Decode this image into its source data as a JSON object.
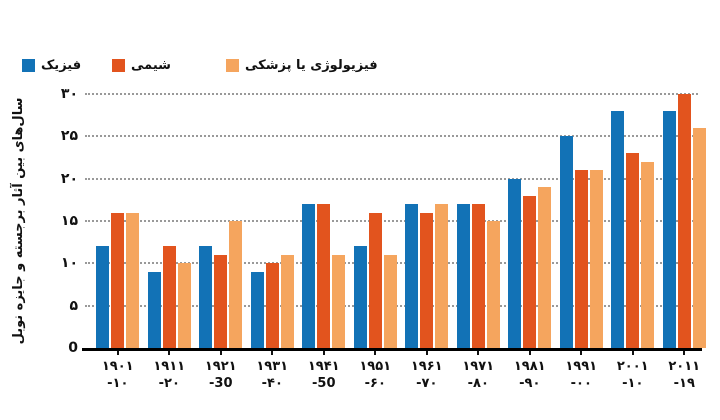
{
  "legend": {
    "position": "top-left"
  },
  "y_axis": {
    "title": "سال‌های بین آثار برجسته و جایزه نوبل",
    "ticks": [
      {
        "label": "۳۰",
        "value": 30
      },
      {
        "label": "۲۵",
        "value": 25
      },
      {
        "label": "۲۰",
        "value": 20
      },
      {
        "label": "۱۵",
        "value": 15
      },
      {
        "label": "۱۰",
        "value": 10
      },
      {
        "label": "۵",
        "value": 5
      },
      {
        "label": "0",
        "value": 0
      }
    ]
  },
  "x_axis": {
    "labels": [
      {
        "line1": "۱۹۰۱",
        "line2": "-۱۰"
      },
      {
        "line1": "۱۹۱۱",
        "line2": "-۲۰"
      },
      {
        "line1": "۱۹۲۱",
        "line2": "-30"
      },
      {
        "line1": "۱۹۳۱",
        "line2": "-۴۰"
      },
      {
        "line1": "۱۹۴۱",
        "line2": "-50"
      },
      {
        "line1": "۱۹۵۱",
        "line2": "-۶۰"
      },
      {
        "line1": "۱۹۶۱",
        "line2": "-۷۰"
      },
      {
        "line1": "۱۹۷۱",
        "line2": "-۸۰"
      },
      {
        "line1": "۱۹۸۱",
        "line2": "-۹۰"
      },
      {
        "line1": "۱۹۹۱",
        "line2": "-۰۰"
      },
      {
        "line1": "۲۰۰۱",
        "line2": "-۱۰"
      },
      {
        "line1": "۲۰۱۱",
        "line2": "-۱۹"
      }
    ]
  },
  "chart_data": {
    "type": "bar",
    "title": "",
    "categories": [
      "۱۹۰۱-۱۰",
      "۱۹۱۱-۲۰",
      "۱۹۲۱-30",
      "۱۹۳۱-۴۰",
      "۱۹۴۱-50",
      "۱۹۵۱-۶۰",
      "۱۹۶۱-۷۰",
      "۱۹۷۱-۸۰",
      "۱۹۸۱-۹۰",
      "۱۹۹۱-۰۰",
      "۲۰۰۱-۱۰",
      "۲۰۱۱-۱۹"
    ],
    "series": [
      {
        "name": "فیزیک",
        "color": "#1272b6",
        "values": [
          12,
          9,
          12,
          9,
          17,
          12,
          17,
          17,
          20,
          25,
          28,
          28
        ]
      },
      {
        "name": "شیمی",
        "color": "#e2541e",
        "values": [
          16,
          12,
          11,
          10,
          17,
          16,
          16,
          17,
          18,
          21,
          23,
          30
        ]
      },
      {
        "name": "فیزیولوژی یا پزشکی",
        "color": "#f5a55e",
        "values": [
          16,
          10,
          15,
          11,
          11,
          11,
          17,
          15,
          19,
          21,
          22,
          26
        ]
      }
    ],
    "xlabel": "",
    "ylabel": "سال‌های بین آثار برجسته و جایزه نوبل",
    "ylim": [
      0,
      30
    ],
    "grid": "horizontal-dotted",
    "legend_position": "top-left"
  },
  "colors": {
    "background": "#ffffff",
    "gridline": "#999999",
    "axis_line": "#000000",
    "text": "#111111"
  }
}
